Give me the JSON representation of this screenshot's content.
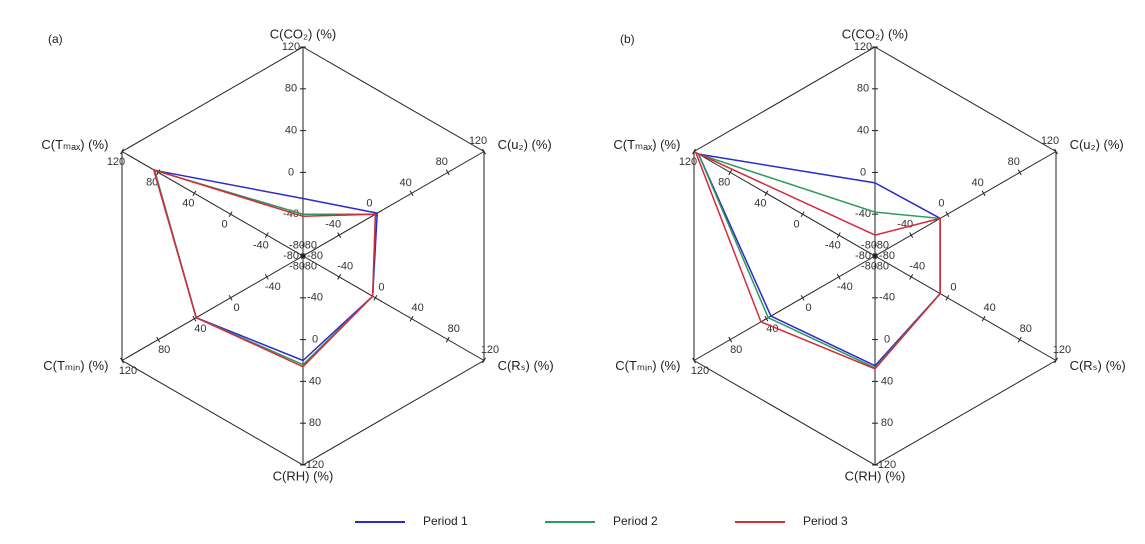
{
  "chart_data": [
    {
      "type": "radar",
      "panel_label": "(a)",
      "axes": [
        "C(CO₂) (%)",
        "C(u₂) (%)",
        "C(Rₛ) (%)",
        "C(RH) (%)",
        "C(Tₘᵢₙ) (%)",
        "C(Tₘₐₓ) (%)"
      ],
      "rlim": [
        -80,
        120
      ],
      "rticks": [
        -80,
        -40,
        0,
        40,
        80,
        120
      ],
      "series": [
        {
          "name": "Period 1",
          "color": "#2b2bcc",
          "values": [
            -25,
            2,
            -3,
            20,
            38,
            84
          ]
        },
        {
          "name": "Period 2",
          "color": "#2e9a5c",
          "values": [
            -40,
            0,
            -3,
            24,
            38,
            84
          ]
        },
        {
          "name": "Period 3",
          "color": "#d42a3a",
          "values": [
            -42,
            0,
            -3,
            26,
            38,
            85
          ]
        }
      ]
    },
    {
      "type": "radar",
      "panel_label": "(b)",
      "axes": [
        "C(CO₂) (%)",
        "C(u₂) (%)",
        "C(Rₛ) (%)",
        "C(RH) (%)",
        "C(Tₘᵢₙ) (%)",
        "C(Tₘₐₓ) (%)"
      ],
      "rlim": [
        -80,
        120
      ],
      "rticks": [
        -80,
        -40,
        0,
        40,
        80,
        120
      ],
      "series": [
        {
          "color": "#2b2bcc",
          "values": [
            -10,
            -8,
            -8,
            25,
            35,
            115
          ]
        },
        {
          "color": "#2e9a5c",
          "values": [
            -38,
            -8,
            -8,
            27,
            38,
            115
          ]
        },
        {
          "color": "#d42a3a",
          "values": [
            -60,
            -8,
            -8,
            28,
            46,
            118
          ]
        }
      ]
    }
  ]
}
